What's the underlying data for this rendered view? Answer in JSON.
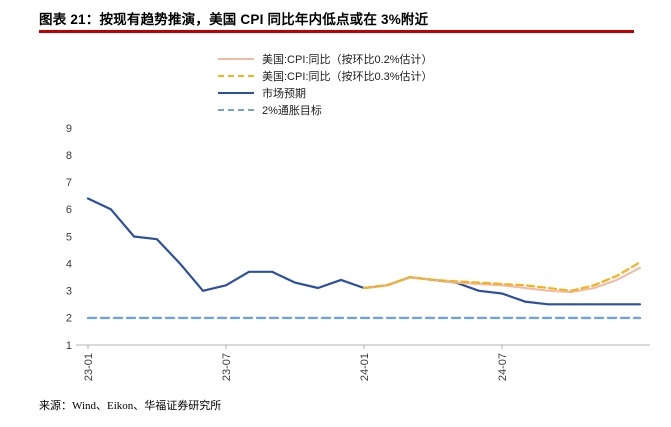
{
  "title": "图表 21：按现有趋势推演，美国 CPI 同比年内低点或在 3%附近",
  "source": "来源：Wind、Eikon、华福证券研究所",
  "colors": {
    "rule_red": "#c00000",
    "cpi_02": "#f2b9a5",
    "cpi_03": "#f5b21a",
    "market": "#2b50a1",
    "target": "#6fa3dc",
    "axis_line": "#b3b3b3",
    "axis_text": "#3a3a3a"
  },
  "legend": {
    "items": [
      {
        "label": "美国:CPI:同比（按环比0.2%估计）",
        "color_key": "cpi_02",
        "dashed": false
      },
      {
        "label": "美国:CPI:同比（按环比0.3%估计）",
        "color_key": "cpi_03",
        "dashed": true
      },
      {
        "label": "市场预期",
        "color_key": "market",
        "dashed": false
      },
      {
        "label": "2%通胀目标",
        "color_key": "target",
        "dashed": true
      }
    ]
  },
  "chart_data": {
    "type": "line",
    "x": [
      "23-01",
      "23-02",
      "23-03",
      "23-04",
      "23-05",
      "23-06",
      "23-07",
      "23-08",
      "23-09",
      "23-10",
      "23-11",
      "23-12",
      "24-01",
      "24-02",
      "24-03",
      "24-04",
      "24-05",
      "24-06",
      "24-07",
      "24-08",
      "24-09",
      "24-10",
      "24-11",
      "24-12",
      "25-01"
    ],
    "x_tick_labels": [
      "23-01",
      "23-07",
      "24-01",
      "24-07"
    ],
    "x_tick_positions": [
      0,
      6,
      12,
      18
    ],
    "ylim": [
      1,
      9
    ],
    "y_ticks": [
      1,
      2,
      3,
      4,
      5,
      6,
      7,
      8,
      9
    ],
    "grid": false,
    "legend_position": "top",
    "series": [
      {
        "name": "2%通胀目标",
        "color_key": "target",
        "dash": "8 5",
        "width": 2.4,
        "values": [
          2,
          2,
          2,
          2,
          2,
          2,
          2,
          2,
          2,
          2,
          2,
          2,
          2,
          2,
          2,
          2,
          2,
          2,
          2,
          2,
          2,
          2,
          2,
          2,
          2
        ]
      },
      {
        "name": "市场预期",
        "color_key": "market",
        "dash": null,
        "width": 2.2,
        "values": [
          6.4,
          6.0,
          5.0,
          4.9,
          4.0,
          3.0,
          3.2,
          3.7,
          3.7,
          3.3,
          3.1,
          3.4,
          3.1,
          3.2,
          3.5,
          3.4,
          3.3,
          3.0,
          2.9,
          2.6,
          2.5,
          2.5,
          2.5,
          2.5,
          2.5
        ]
      },
      {
        "name": "美国:CPI:同比（按环比0.2%估计）",
        "color_key": "cpi_02",
        "dash": null,
        "width": 2,
        "values": [
          null,
          null,
          null,
          null,
          null,
          null,
          null,
          null,
          null,
          null,
          null,
          null,
          3.1,
          3.2,
          3.5,
          3.4,
          3.3,
          3.25,
          3.2,
          3.1,
          3.0,
          2.95,
          3.1,
          3.4,
          3.85
        ]
      },
      {
        "name": "美国:CPI:同比（按环比0.3%估计）",
        "color_key": "cpi_03",
        "dash": "7 4",
        "width": 2.2,
        "values": [
          null,
          null,
          null,
          null,
          null,
          null,
          null,
          null,
          null,
          null,
          null,
          null,
          3.1,
          3.2,
          3.5,
          3.4,
          3.35,
          3.3,
          3.25,
          3.2,
          3.1,
          3.0,
          3.2,
          3.55,
          4.05
        ]
      }
    ]
  }
}
